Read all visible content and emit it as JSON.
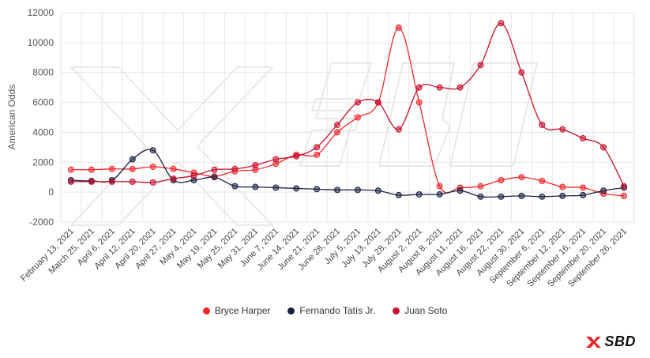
{
  "chart_data": {
    "type": "line",
    "ylabel": "American Odds",
    "ylim": [
      -2000,
      12000
    ],
    "yticks": [
      -2000,
      0,
      2000,
      4000,
      6000,
      8000,
      10000,
      12000
    ],
    "grid": true,
    "legend_position": "bottom",
    "categories": [
      "February 13, 2021",
      "March 25, 2021",
      "April 6, 2021",
      "April 12, 2021",
      "April 20, 2021",
      "April 27, 2021",
      "May 4, 2021",
      "May 19, 2021",
      "May 25, 2021",
      "May 31, 2021",
      "June 7, 2021",
      "June 14, 2021",
      "June 21, 2021",
      "June 28, 2021",
      "July 5, 2021",
      "July 13, 2021",
      "July 28, 2021",
      "August 2, 2021",
      "August 8, 2021",
      "August 11, 2021",
      "August 16, 2021",
      "August 22, 2021",
      "August 30, 2021",
      "September 6, 2021",
      "September 12, 2021",
      "September 16, 2021",
      "September 20, 2021",
      "September 26, 2021"
    ],
    "series": [
      {
        "name": "Bryce Harper",
        "color": "#f0282d",
        "values": [
          1500,
          1500,
          1550,
          1550,
          1700,
          1550,
          1300,
          1050,
          1400,
          1500,
          1900,
          2500,
          2500,
          4000,
          5000,
          6000,
          11000,
          6000,
          400,
          300,
          400,
          800,
          1000,
          750,
          350,
          300,
          -100,
          -250
        ]
      },
      {
        "name": "Fernando Tatís Jr.",
        "color": "#1c2141",
        "values": [
          800,
          750,
          800,
          2200,
          2800,
          800,
          800,
          1000,
          400,
          350,
          300,
          250,
          200,
          150,
          150,
          100,
          -200,
          -150,
          -150,
          100,
          -300,
          -300,
          -250,
          -300,
          -250,
          -200,
          100,
          300
        ]
      },
      {
        "name": "Juan Soto",
        "color": "#c8102e",
        "values": [
          700,
          700,
          700,
          700,
          650,
          900,
          1100,
          1500,
          1550,
          1800,
          2200,
          2400,
          3000,
          4500,
          6000,
          6000,
          4200,
          7000,
          7000,
          7000,
          8500,
          11300,
          8000,
          4500,
          4200,
          3600,
          3000,
          400
        ]
      }
    ]
  },
  "brand": {
    "text": "SBD"
  }
}
